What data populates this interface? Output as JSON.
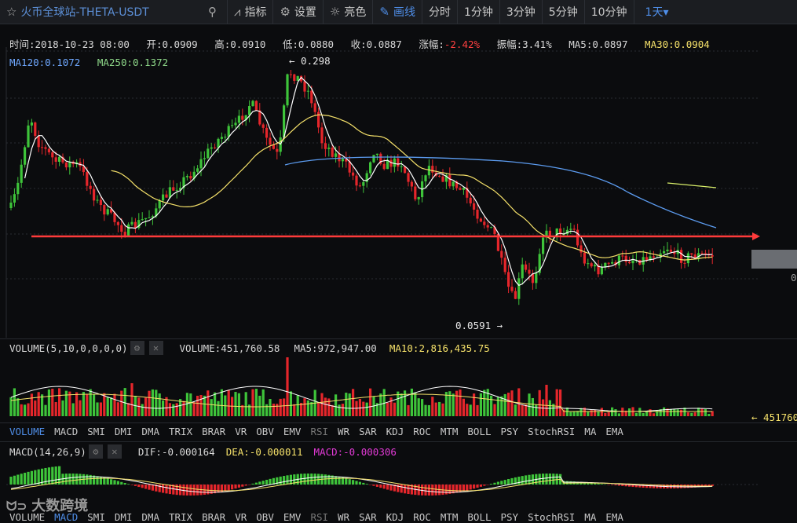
{
  "toolbar": {
    "title": "火币全球站-THETA-USDT",
    "indicator": "指标",
    "settings": "设置",
    "theme": "亮色",
    "draw": "画线",
    "periods": [
      "分时",
      "1分钟",
      "3分钟",
      "5分钟",
      "10分钟"
    ],
    "period_selected": "1天▾"
  },
  "info": {
    "time": "时间:2018-10-23 08:00",
    "open": "开:0.0909",
    "high": "高:0.0910",
    "low": "低:0.0880",
    "close": "收:0.0887",
    "change_label": "涨幅:",
    "change_value": "-2.42%",
    "amplitude": "振幅:3.41%",
    "ma5": "MA5:0.0897",
    "ma30": "MA30:0.0904",
    "ma120": "MA120:0.1072",
    "ma250": "MA250:0.1372"
  },
  "annotations": {
    "high": "← 0.298",
    "low": "0.0591 →",
    "volume_tag": "← 451760",
    "axis_zero": "0"
  },
  "volume_panel": {
    "label": "VOLUME(5,10,0,0,0,0)",
    "volume": "VOLUME:451,760.58",
    "ma5": "MA5:972,947.00",
    "ma10": "MA10:2,816,435.75"
  },
  "indicator_tabs": [
    "VOLUME",
    "MACD",
    "SMI",
    "DMI",
    "DMA",
    "TRIX",
    "BRAR",
    "VR",
    "OBV",
    "EMV",
    "RSI",
    "WR",
    "SAR",
    "KDJ",
    "ROC",
    "MTM",
    "BOLL",
    "PSY",
    "StochRSI",
    "MA",
    "EMA"
  ],
  "macd_panel": {
    "label": "MACD(14,26,9)",
    "dif": "DIF:-0.000164",
    "dea": "DEA:-0.000011",
    "macd": "MACD:-0.000306"
  },
  "watermark": "大数跨境",
  "colors": {
    "up": "#3ec43a",
    "down": "#e5262b",
    "ma5": "#ffffff",
    "ma30": "#f5e16a",
    "ma120": "#5c9cf0",
    "ma250": "#d9ef6a",
    "support": "#ff3b3b"
  }
}
